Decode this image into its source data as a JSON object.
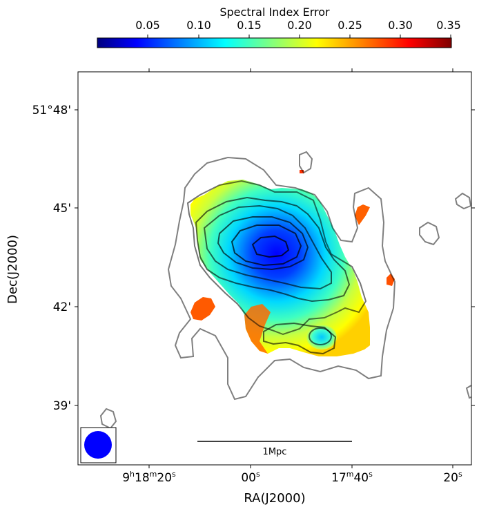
{
  "colorbar": {
    "title": "Spectral Index Error",
    "ticks": [
      "0.05",
      "0.10",
      "0.15",
      "0.20",
      "0.25",
      "0.30",
      "0.35"
    ],
    "range": [
      0.02,
      0.35
    ],
    "colormap": [
      "#00007f",
      "#0000ff",
      "#00ffff",
      "#ffff00",
      "#ff0000",
      "#7f0000"
    ]
  },
  "axes": {
    "xlabel": "RA(J2000)",
    "ylabel": "Dec(J2000)",
    "xticks": [
      {
        "h": "9",
        "hu": "h",
        "m": "18",
        "mu": "m",
        "s": "20",
        "su": "s"
      },
      {
        "s": "00",
        "su": "s"
      },
      {
        "m": "17",
        "mu": "m",
        "s": "40",
        "su": "s"
      },
      {
        "s": "20",
        "su": "s"
      }
    ],
    "yticks": [
      "51°48'",
      "45'",
      "42'",
      "39'"
    ]
  },
  "scalebar": {
    "label": "1Mpc"
  },
  "beam": {
    "color": "#0000ff"
  },
  "contour_color": "#000000"
}
